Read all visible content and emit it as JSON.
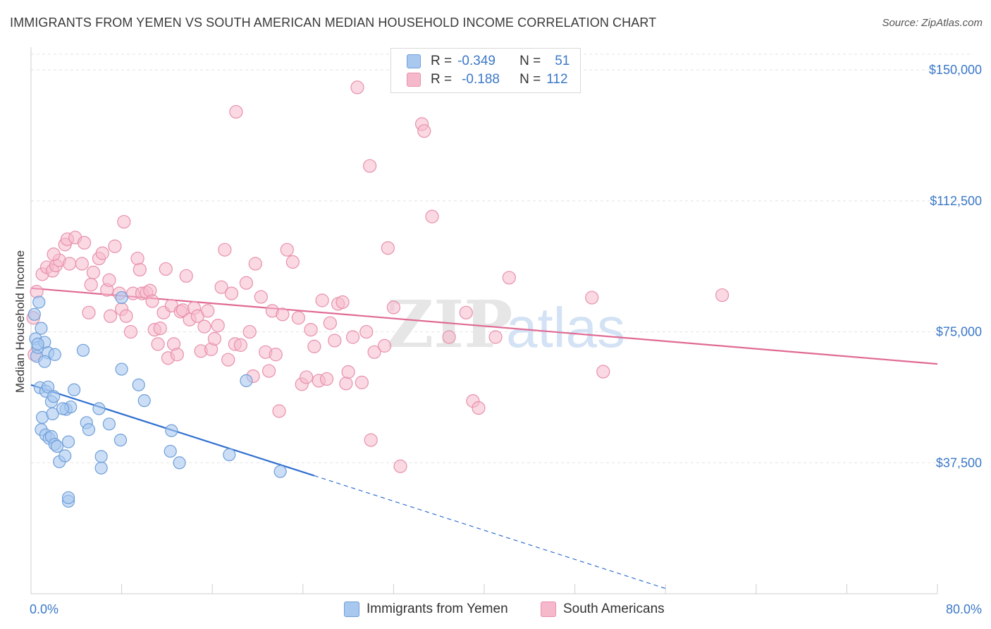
{
  "title": "IMMIGRANTS FROM YEMEN VS SOUTH AMERICAN MEDIAN HOUSEHOLD INCOME CORRELATION CHART",
  "source": "Source: ZipAtlas.com",
  "colors": {
    "blue_fill": "#a9c8f0",
    "blue_stroke": "#6f9fd8",
    "blue_line": "#2f6fd0",
    "pink_fill": "#f6b9cc",
    "pink_stroke": "#e890aa",
    "pink_line": "#e06a94",
    "tick_blue": "#3b78c8"
  },
  "legend": {
    "rows": [
      {
        "r_label": "R =",
        "r_value": "-0.349",
        "n_label": "N =",
        "n_value": "51"
      },
      {
        "r_label": "R =",
        "r_value": "-0.188",
        "n_label": "N =",
        "n_value": "112"
      }
    ]
  },
  "bottom_legend": {
    "series1": "Immigrants from Yemen",
    "series2": "South Americans"
  },
  "chart_data": {
    "type": "scatter",
    "xlabel": "",
    "ylabel": "Median Household Income",
    "xlim": [
      0,
      80
    ],
    "ylim": [
      0,
      157500
    ],
    "x_tick_labels": [
      "0.0%",
      "80.0%"
    ],
    "y_ticks": [
      37500,
      75000,
      112500,
      150000
    ],
    "y_tick_labels": [
      "$37,500",
      "$75,000",
      "$112,500",
      "$150,000"
    ],
    "grid": true,
    "legend_position": "top-center",
    "watermark": "ZIPatlas",
    "series": [
      {
        "name": "Immigrants from Yemen",
        "r": -0.349,
        "n": 51,
        "trend": {
          "x0": 0,
          "y0": 59800,
          "x1": 25,
          "y1": 33800,
          "dashed_to_x": 56,
          "dashed_to_y": 1500
        },
        "points": [
          [
            0.3,
            80000
          ],
          [
            0.4,
            73000
          ],
          [
            0.5,
            68000
          ],
          [
            0.6,
            70500
          ],
          [
            0.7,
            83500
          ],
          [
            0.9,
            76000
          ],
          [
            1.2,
            72000
          ],
          [
            1.5,
            69000
          ],
          [
            2.1,
            68500
          ],
          [
            0.8,
            59000
          ],
          [
            1.3,
            58000
          ],
          [
            1.5,
            59200
          ],
          [
            1.0,
            50500
          ],
          [
            1.9,
            51500
          ],
          [
            1.8,
            55000
          ],
          [
            0.9,
            47000
          ],
          [
            1.3,
            45500
          ],
          [
            1.6,
            44500
          ],
          [
            1.8,
            45000
          ],
          [
            2.1,
            42800
          ],
          [
            2.3,
            42200
          ],
          [
            2.5,
            37800
          ],
          [
            3.0,
            39500
          ],
          [
            3.3,
            43500
          ],
          [
            3.1,
            52800
          ],
          [
            3.5,
            53500
          ],
          [
            3.8,
            58400
          ],
          [
            4.6,
            69700
          ],
          [
            4.9,
            49000
          ],
          [
            5.1,
            47000
          ],
          [
            6.0,
            53000
          ],
          [
            6.2,
            36000
          ],
          [
            6.2,
            39300
          ],
          [
            6.9,
            48600
          ],
          [
            7.9,
            44000
          ],
          [
            8.0,
            64300
          ],
          [
            8.0,
            84800
          ],
          [
            9.5,
            59800
          ],
          [
            10.0,
            55300
          ],
          [
            12.3,
            40800
          ],
          [
            12.4,
            46700
          ],
          [
            13.1,
            37500
          ],
          [
            17.5,
            39800
          ],
          [
            19.0,
            61000
          ],
          [
            22.0,
            35000
          ],
          [
            3.3,
            26500
          ],
          [
            3.3,
            27500
          ],
          [
            2.8,
            53000
          ],
          [
            1.2,
            66500
          ],
          [
            0.6,
            71500
          ],
          [
            2.0,
            56500
          ]
        ]
      },
      {
        "name": "South Americans",
        "r": -0.188,
        "n": 112,
        "trend": {
          "x0": 0,
          "y0": 87500,
          "x1": 80,
          "y1": 65800
        },
        "points": [
          [
            0.2,
            79000
          ],
          [
            0.3,
            68500
          ],
          [
            0.5,
            86500
          ],
          [
            1.0,
            91500
          ],
          [
            1.4,
            93500
          ],
          [
            1.9,
            92500
          ],
          [
            2.2,
            94000
          ],
          [
            2.5,
            95500
          ],
          [
            3.0,
            100000
          ],
          [
            3.2,
            101500
          ],
          [
            3.4,
            94500
          ],
          [
            3.9,
            102000
          ],
          [
            4.5,
            94500
          ],
          [
            4.7,
            100500
          ],
          [
            5.1,
            80500
          ],
          [
            5.3,
            88500
          ],
          [
            5.5,
            92000
          ],
          [
            6.0,
            96000
          ],
          [
            6.3,
            97500
          ],
          [
            6.7,
            87000
          ],
          [
            6.9,
            89800
          ],
          [
            7.0,
            79500
          ],
          [
            7.4,
            99500
          ],
          [
            7.8,
            86000
          ],
          [
            8.0,
            81500
          ],
          [
            8.2,
            106500
          ],
          [
            8.4,
            79500
          ],
          [
            8.8,
            75000
          ],
          [
            9.0,
            86000
          ],
          [
            9.4,
            96000
          ],
          [
            9.6,
            92800
          ],
          [
            9.8,
            86000
          ],
          [
            10.2,
            86200
          ],
          [
            10.5,
            86800
          ],
          [
            10.7,
            83800
          ],
          [
            10.9,
            75600
          ],
          [
            11.2,
            71500
          ],
          [
            11.4,
            76000
          ],
          [
            11.7,
            80500
          ],
          [
            11.9,
            93000
          ],
          [
            12.1,
            67500
          ],
          [
            12.4,
            82500
          ],
          [
            12.6,
            71500
          ],
          [
            12.9,
            68500
          ],
          [
            13.2,
            80800
          ],
          [
            13.4,
            81200
          ],
          [
            13.7,
            91000
          ],
          [
            14.0,
            78500
          ],
          [
            14.4,
            81800
          ],
          [
            14.7,
            79500
          ],
          [
            15.0,
            69500
          ],
          [
            15.3,
            76500
          ],
          [
            15.6,
            81000
          ],
          [
            15.9,
            70000
          ],
          [
            16.2,
            73000
          ],
          [
            16.5,
            76800
          ],
          [
            16.8,
            87800
          ],
          [
            17.1,
            98500
          ],
          [
            17.4,
            67000
          ],
          [
            17.7,
            86000
          ],
          [
            18.0,
            71500
          ],
          [
            18.5,
            71200
          ],
          [
            19.0,
            89000
          ],
          [
            19.3,
            75000
          ],
          [
            19.6,
            62300
          ],
          [
            19.8,
            94500
          ],
          [
            20.3,
            85000
          ],
          [
            20.7,
            69200
          ],
          [
            21.0,
            63800
          ],
          [
            21.3,
            81000
          ],
          [
            21.6,
            68500
          ],
          [
            21.9,
            52300
          ],
          [
            22.2,
            80000
          ],
          [
            22.6,
            98500
          ],
          [
            23.1,
            95000
          ],
          [
            23.6,
            79000
          ],
          [
            23.9,
            60000
          ],
          [
            24.3,
            62000
          ],
          [
            24.7,
            75600
          ],
          [
            25.0,
            70800
          ],
          [
            25.4,
            61000
          ],
          [
            25.7,
            84000
          ],
          [
            26.1,
            61500
          ],
          [
            26.4,
            77500
          ],
          [
            26.8,
            72500
          ],
          [
            27.1,
            83000
          ],
          [
            27.5,
            83500
          ],
          [
            27.8,
            60200
          ],
          [
            28.0,
            63500
          ],
          [
            28.4,
            73500
          ],
          [
            28.8,
            145000
          ],
          [
            29.2,
            60500
          ],
          [
            29.6,
            75000
          ],
          [
            29.9,
            122500
          ],
          [
            30.3,
            69200
          ],
          [
            31.2,
            71000
          ],
          [
            31.5,
            99000
          ],
          [
            32.0,
            82000
          ],
          [
            32.6,
            36500
          ],
          [
            34.5,
            134500
          ],
          [
            34.7,
            132500
          ],
          [
            35.4,
            108000
          ],
          [
            36.9,
            73500
          ],
          [
            38.4,
            80500
          ],
          [
            39.0,
            55200
          ],
          [
            39.5,
            53200
          ],
          [
            41.0,
            73500
          ],
          [
            42.2,
            90500
          ],
          [
            49.5,
            84800
          ],
          [
            50.5,
            63600
          ],
          [
            61.0,
            85500
          ],
          [
            30.0,
            44000
          ],
          [
            18.1,
            138000
          ],
          [
            2.0,
            97200
          ]
        ]
      }
    ]
  }
}
